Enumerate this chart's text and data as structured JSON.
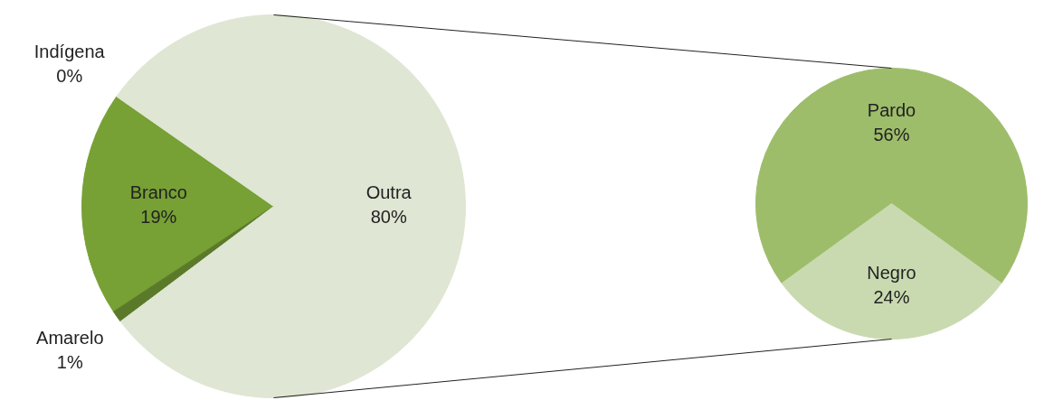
{
  "chart_data": [
    {
      "type": "pie",
      "categories": [
        "Indígena",
        "Branco",
        "Amarelo",
        "Outra"
      ],
      "values": [
        0,
        19,
        1,
        80
      ],
      "colors": [
        "#8db84a",
        "#77a035",
        "#5a7a2a",
        "#dfe6d3"
      ],
      "value_labels": [
        "0%",
        "19%",
        "1%",
        "80%"
      ]
    },
    {
      "type": "pie",
      "categories": [
        "Pardo",
        "Negro"
      ],
      "values": [
        56,
        24
      ],
      "colors": [
        "#9dbd6a",
        "#c9dab0"
      ],
      "value_labels": [
        "56%",
        "24%"
      ]
    }
  ]
}
